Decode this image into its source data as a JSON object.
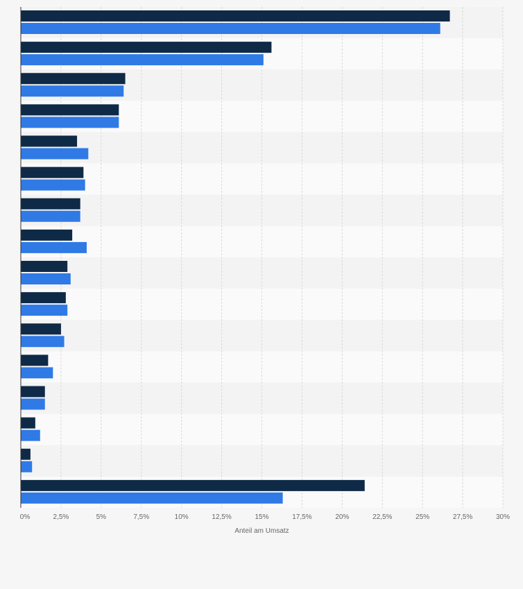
{
  "chart_data": {
    "type": "bar",
    "orientation": "horizontal",
    "xlabel": "Anteil am Umsatz",
    "xlim": [
      0,
      30
    ],
    "x_ticks": [
      {
        "value": 0,
        "label": "0%"
      },
      {
        "value": 2.5,
        "label": "2,5%"
      },
      {
        "value": 5,
        "label": "5%"
      },
      {
        "value": 7.5,
        "label": "7,5%"
      },
      {
        "value": 10,
        "label": "10%"
      },
      {
        "value": 12.5,
        "label": "12,5%"
      },
      {
        "value": 15,
        "label": "15%"
      },
      {
        "value": 17.5,
        "label": "17,5%"
      },
      {
        "value": 20,
        "label": "20%"
      },
      {
        "value": 22.5,
        "label": "22,5%"
      },
      {
        "value": 25,
        "label": "25%"
      },
      {
        "value": 27.5,
        "label": "27,5%"
      },
      {
        "value": 30,
        "label": "30%"
      }
    ],
    "grid": true,
    "category_count": 16,
    "series": [
      {
        "color": "#0f2a47",
        "values": [
          26.7,
          15.6,
          6.5,
          6.1,
          3.5,
          3.9,
          3.7,
          3.2,
          2.9,
          2.8,
          2.5,
          1.7,
          1.5,
          0.9,
          0.6,
          21.4
        ]
      },
      {
        "color": "#2f7ae5",
        "values": [
          26.1,
          15.1,
          6.4,
          6.1,
          4.2,
          4.0,
          3.7,
          4.1,
          3.1,
          2.9,
          2.7,
          2.0,
          1.5,
          1.2,
          0.7,
          16.3
        ]
      }
    ]
  }
}
